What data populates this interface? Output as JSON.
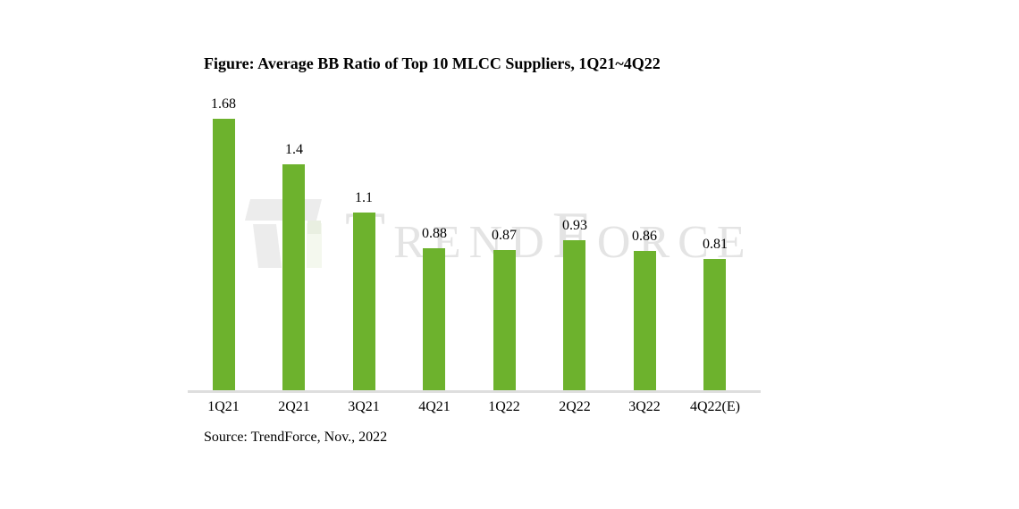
{
  "chart": {
    "title": "Figure: Average BB Ratio of Top 10 MLCC Suppliers, 1Q21~4Q22",
    "source": "Source: TrendForce, Nov., 2022",
    "watermark": "TrendForce"
  },
  "chart_data": {
    "type": "bar",
    "categories": [
      "1Q21",
      "2Q21",
      "3Q21",
      "4Q21",
      "1Q22",
      "2Q22",
      "3Q22",
      "4Q22(E)"
    ],
    "values": [
      1.68,
      1.4,
      1.1,
      0.88,
      0.87,
      0.93,
      0.86,
      0.81
    ],
    "value_labels": [
      "1.68",
      "1.4",
      "1.1",
      "0.88",
      "0.87",
      "0.93",
      "0.86",
      "0.81"
    ],
    "title": "Figure: Average BB Ratio of Top 10 MLCC Suppliers, 1Q21~4Q22",
    "xlabel": "",
    "ylabel": "",
    "ylim": [
      0,
      1.8
    ],
    "grid": false,
    "legend": false,
    "data_labels": true,
    "source": "Source: TrendForce, Nov., 2022",
    "watermark": "TrendForce"
  },
  "colors": {
    "bar": "#6db22d",
    "axis_line": "#dedede",
    "watermark_text": "#e4e4e4",
    "watermark_logo": "#ececec",
    "text": "#000000",
    "background": "#ffffff"
  }
}
